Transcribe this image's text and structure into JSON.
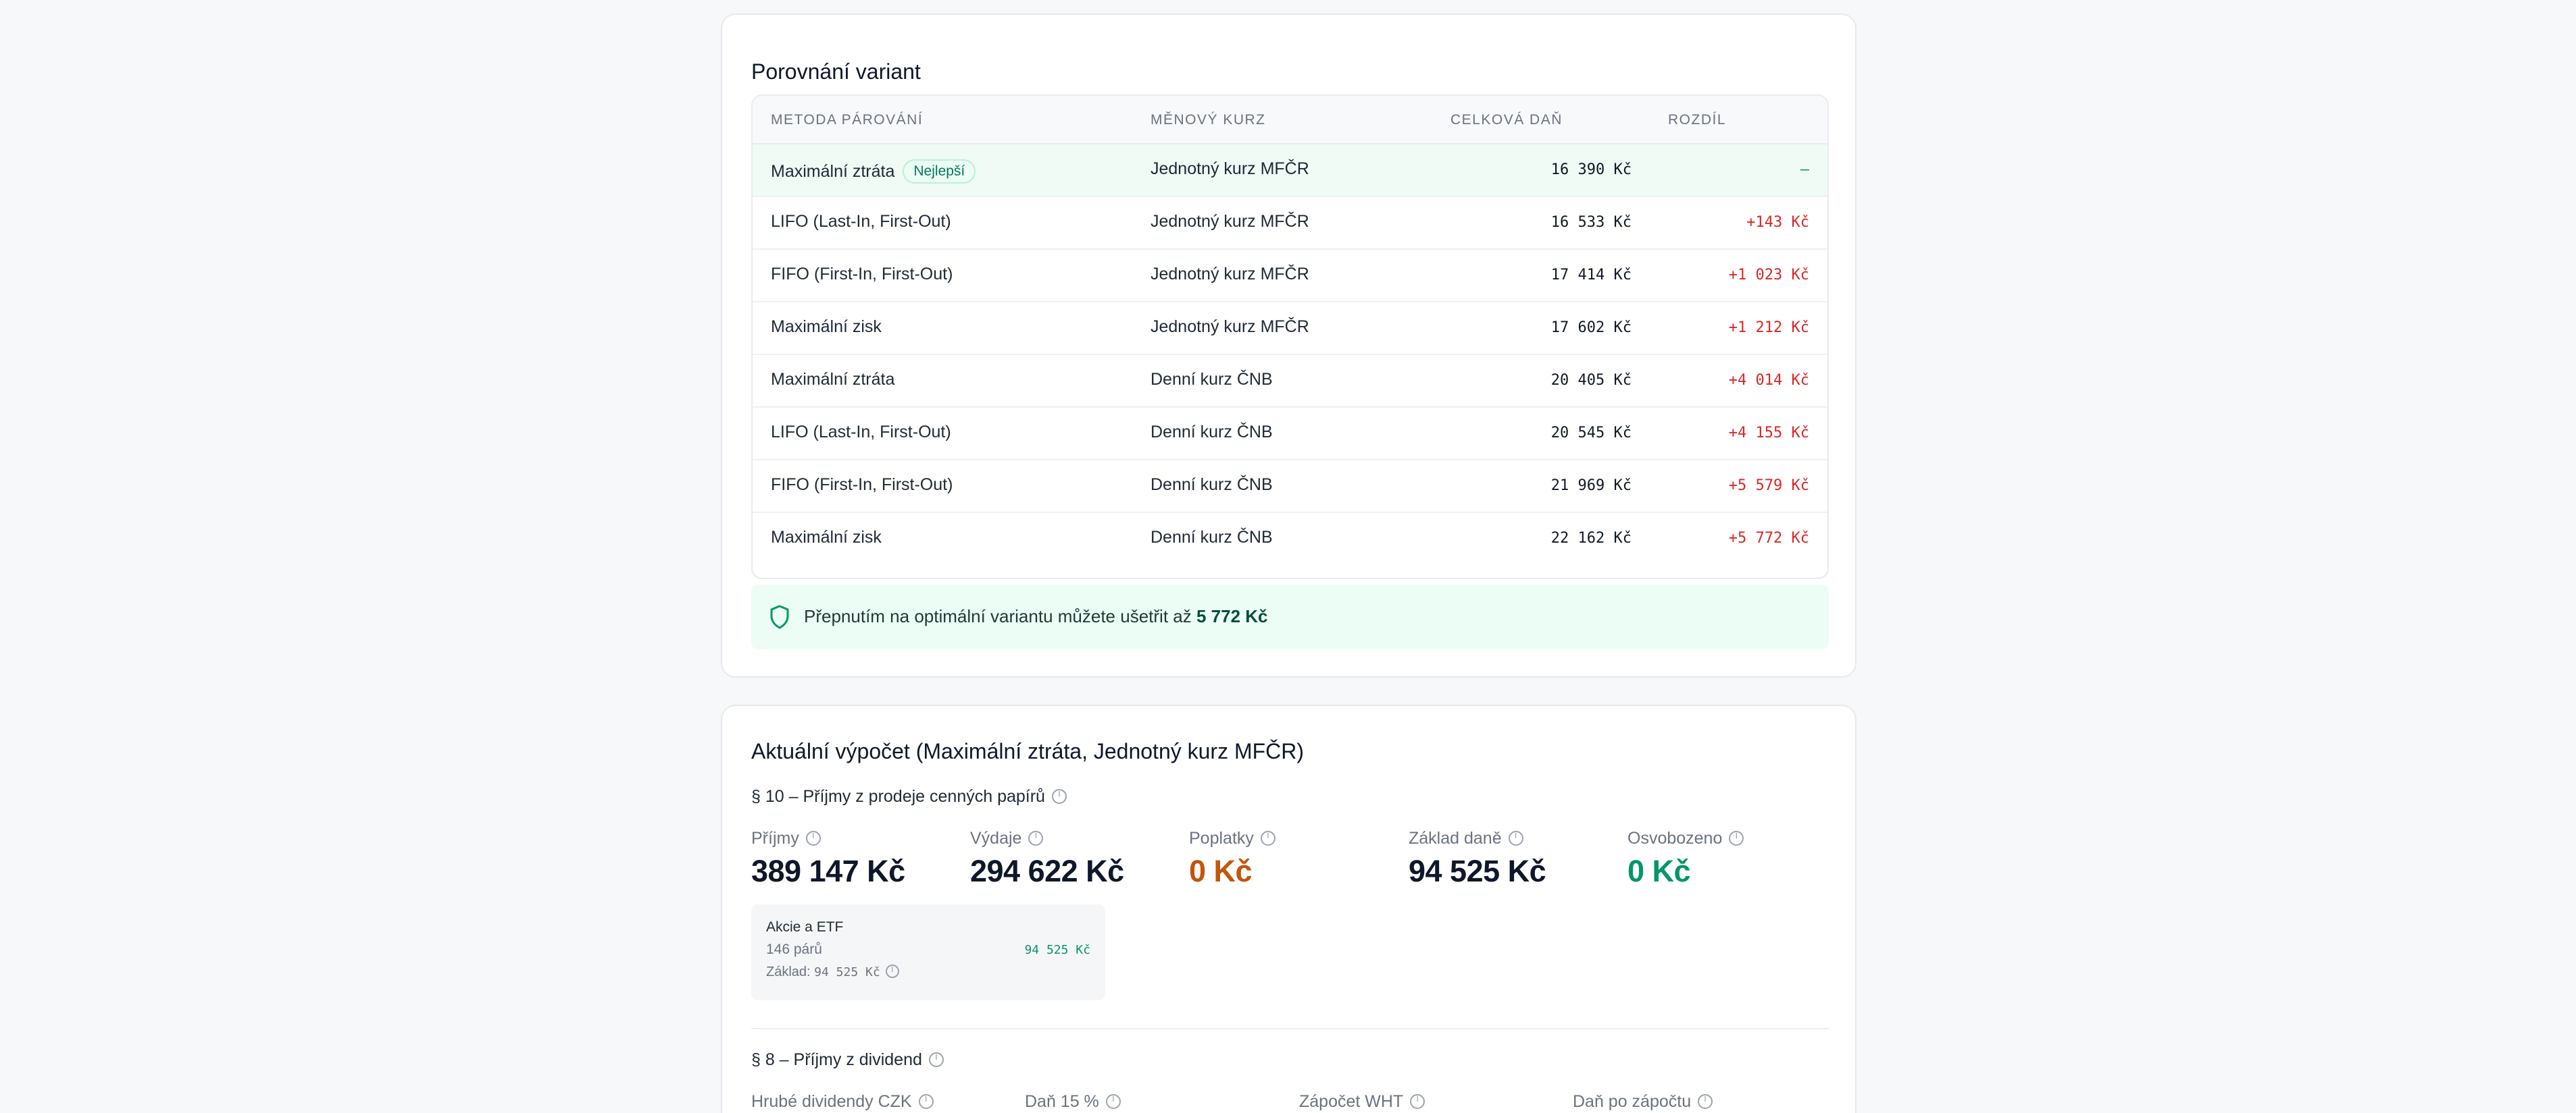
{
  "compare": {
    "title": "Porovnání variant",
    "headers": [
      "METODA PÁROVÁNÍ",
      "MĚNOVÝ KURZ",
      "CELKOVÁ DAŇ",
      "ROZDÍL"
    ],
    "rows": [
      {
        "method": "Maximální ztráta",
        "badge": "Nejlepší",
        "rate": "Jednotný kurz MFČR",
        "tax": "16 390 Kč",
        "diff": "–"
      },
      {
        "method": "LIFO (Last-In, First-Out)",
        "rate": "Jednotný kurz MFČR",
        "tax": "16 533 Kč",
        "diff": "+143 Kč"
      },
      {
        "method": "FIFO (First-In, First-Out)",
        "rate": "Jednotný kurz MFČR",
        "tax": "17 414 Kč",
        "diff": "+1 023 Kč"
      },
      {
        "method": "Maximální zisk",
        "rate": "Jednotný kurz MFČR",
        "tax": "17 602 Kč",
        "diff": "+1 212 Kč"
      },
      {
        "method": "Maximální ztráta",
        "rate": "Denní kurz ČNB",
        "tax": "20 405 Kč",
        "diff": "+4 014 Kč"
      },
      {
        "method": "LIFO (Last-In, First-Out)",
        "rate": "Denní kurz ČNB",
        "tax": "20 545 Kč",
        "diff": "+4 155 Kč"
      },
      {
        "method": "FIFO (First-In, First-Out)",
        "rate": "Denní kurz ČNB",
        "tax": "21 969 Kč",
        "diff": "+5 579 Kč"
      },
      {
        "method": "Maximální zisk",
        "rate": "Denní kurz ČNB",
        "tax": "22 162 Kč",
        "diff": "+5 772 Kč"
      }
    ],
    "savings_text": "Přepnutím na optimální variantu můžete ušetřit až",
    "savings_amount": "5 772 Kč"
  },
  "current": {
    "title": "Aktuální výpočet (Maximální ztráta, Jednotný kurz MFČR)",
    "section10": "§ 10 – Příjmy z prodeje cenných papírů",
    "stats": [
      {
        "label": "Příjmy",
        "value": "389 147 Kč"
      },
      {
        "label": "Výdaje",
        "value": "294 622 Kč"
      },
      {
        "label": "Poplatky",
        "value": "0 Kč"
      },
      {
        "label": "Základ daně",
        "value": "94 525 Kč"
      },
      {
        "label": "Osvobozeno",
        "value": "0 Kč"
      }
    ],
    "mini": {
      "title": "Akcie a ETF",
      "pairs": "146 párů",
      "base_label": "Základ:",
      "base_value": "94 525 Kč",
      "value": "94 525 Kč"
    },
    "section8": "§ 8 – Příjmy z dividend",
    "div_stats": [
      "Hrubé dividendy CZK",
      "Daň 15 %",
      "Zápočet WHT",
      "Daň po zápočtu"
    ]
  },
  "colors": {
    "accent_green": "#059669",
    "negative_red": "#dc2626",
    "fees_orange": "#c2560c"
  }
}
